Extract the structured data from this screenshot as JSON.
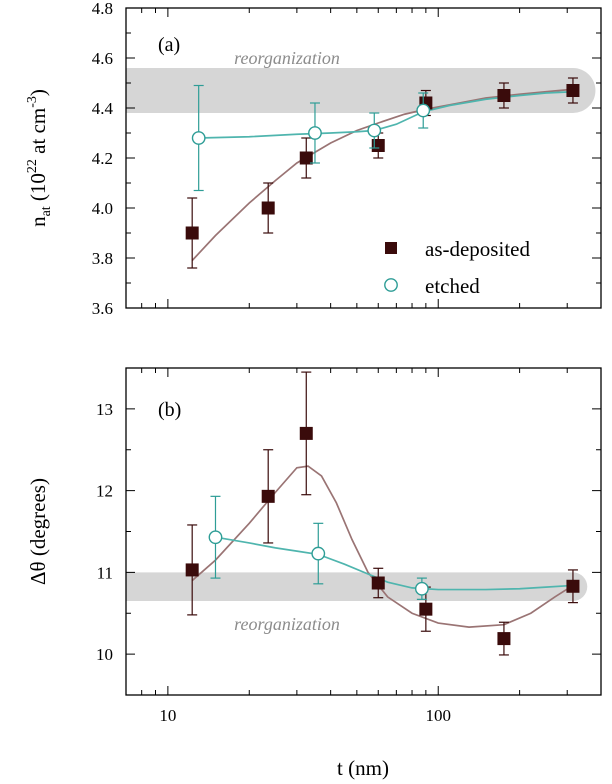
{
  "chart_data": [
    {
      "id": "a",
      "type": "scatter",
      "panel_label": "(a)",
      "band_label": "reorganization",
      "band_range": [
        4.38,
        4.56
      ],
      "band_color": "#d6d6d6",
      "x_scale": "log",
      "xlim": [
        7,
        400
      ],
      "ylim": [
        3.6,
        4.8
      ],
      "y_ticks": [
        "3.6",
        "3.8",
        "4.0",
        "4.2",
        "4.4",
        "4.6",
        "4.8"
      ],
      "ylabel": {
        "main": "n",
        "sub": "at",
        "open": " (10",
        "sup": "22",
        "mid": " at cm",
        "sup2": "-3",
        "close": ")"
      },
      "series": [
        {
          "name": "as-deposited",
          "marker": "filled-square",
          "color": "#3a0b0b",
          "points": [
            {
              "x": 12.3,
              "y": 3.9,
              "err": 0.14
            },
            {
              "x": 23.5,
              "y": 4.0,
              "err": 0.1
            },
            {
              "x": 32.5,
              "y": 4.2,
              "err": 0.08
            },
            {
              "x": 60,
              "y": 4.25,
              "err": 0.05
            },
            {
              "x": 90,
              "y": 4.42,
              "err": 0.05
            },
            {
              "x": 175,
              "y": 4.45,
              "err": 0.05
            },
            {
              "x": 315,
              "y": 4.47,
              "err": 0.05
            }
          ],
          "fit_color": "#9a7474",
          "fit": [
            [
              12.3,
              3.79
            ],
            [
              15,
              3.89
            ],
            [
              20,
              4.02
            ],
            [
              25,
              4.11
            ],
            [
              30,
              4.18
            ],
            [
              40,
              4.26
            ],
            [
              50,
              4.31
            ],
            [
              60,
              4.34
            ],
            [
              75,
              4.375
            ],
            [
              90,
              4.395
            ],
            [
              120,
              4.42
            ],
            [
              150,
              4.44
            ],
            [
              200,
              4.455
            ],
            [
              250,
              4.465
            ],
            [
              315,
              4.475
            ]
          ]
        },
        {
          "name": "etched",
          "marker": "open-circle",
          "color": "#2e9d96",
          "points": [
            {
              "x": 13,
              "y": 4.28,
              "err": 0.21
            },
            {
              "x": 35,
              "y": 4.3,
              "err": 0.12
            },
            {
              "x": 58,
              "y": 4.31,
              "err": 0.07
            },
            {
              "x": 88,
              "y": 4.39,
              "err": 0.07
            }
          ],
          "fit_color": "#4fb5ae",
          "fit": [
            [
              13,
              4.28
            ],
            [
              20,
              4.285
            ],
            [
              30,
              4.295
            ],
            [
              40,
              4.3
            ],
            [
              50,
              4.305
            ],
            [
              58,
              4.31
            ],
            [
              70,
              4.335
            ],
            [
              88,
              4.385
            ],
            [
              110,
              4.41
            ],
            [
              150,
              4.435
            ],
            [
              200,
              4.45
            ],
            [
              250,
              4.46
            ],
            [
              315,
              4.465
            ]
          ]
        }
      ]
    },
    {
      "id": "b",
      "type": "scatter",
      "panel_label": "(b)",
      "band_label": "reorganization",
      "band_range": [
        10.65,
        11.0
      ],
      "band_color": "#d6d6d6",
      "x_scale": "log",
      "xlim": [
        7,
        400
      ],
      "ylim": [
        9.5,
        13.5
      ],
      "y_ticks": [
        "10",
        "11",
        "12",
        "13"
      ],
      "x_ticks": [
        "10",
        "100"
      ],
      "xlabel": "t (nm)",
      "ylabel": "Δθ (degrees)",
      "series": [
        {
          "name": "as-deposited",
          "marker": "filled-square",
          "color": "#3a0b0b",
          "points": [
            {
              "x": 12.3,
              "y": 11.03,
              "err": 0.55
            },
            {
              "x": 23.5,
              "y": 11.93,
              "err": 0.57
            },
            {
              "x": 32.5,
              "y": 12.7,
              "err": 0.75
            },
            {
              "x": 60,
              "y": 10.87,
              "err": 0.18
            },
            {
              "x": 90,
              "y": 10.55,
              "err": 0.27
            },
            {
              "x": 175,
              "y": 10.19,
              "err": 0.2
            },
            {
              "x": 315,
              "y": 10.83,
              "err": 0.2
            }
          ],
          "fit_color": "#9a7474",
          "fit": [
            [
              12.3,
              10.9
            ],
            [
              15,
              11.15
            ],
            [
              20,
              11.6
            ],
            [
              25,
              11.98
            ],
            [
              30,
              12.28
            ],
            [
              33,
              12.3
            ],
            [
              37,
              12.18
            ],
            [
              42,
              11.85
            ],
            [
              48,
              11.4
            ],
            [
              55,
              11.0
            ],
            [
              65,
              10.7
            ],
            [
              80,
              10.5
            ],
            [
              100,
              10.38
            ],
            [
              130,
              10.33
            ],
            [
              175,
              10.36
            ],
            [
              220,
              10.5
            ],
            [
              270,
              10.7
            ],
            [
              315,
              10.84
            ]
          ]
        },
        {
          "name": "etched",
          "marker": "open-circle",
          "color": "#2e9d96",
          "points": [
            {
              "x": 15,
              "y": 11.43,
              "err": 0.5
            },
            {
              "x": 36,
              "y": 11.23,
              "err": 0.37
            },
            {
              "x": 87,
              "y": 10.8,
              "err": 0.13
            }
          ],
          "fit_color": "#4fb5ae",
          "fit": [
            [
              15,
              11.43
            ],
            [
              20,
              11.36
            ],
            [
              25,
              11.3
            ],
            [
              30,
              11.26
            ],
            [
              36,
              11.22
            ],
            [
              45,
              11.1
            ],
            [
              55,
              10.98
            ],
            [
              65,
              10.88
            ],
            [
              80,
              10.81
            ],
            [
              100,
              10.79
            ],
            [
              150,
              10.79
            ],
            [
              200,
              10.8
            ],
            [
              250,
              10.82
            ],
            [
              315,
              10.84
            ]
          ]
        }
      ]
    }
  ]
}
